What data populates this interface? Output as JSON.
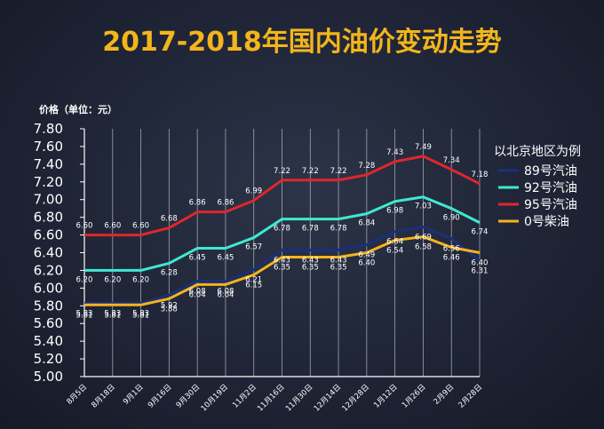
{
  "chart_data": {
    "type": "line",
    "title": "2017-2018年国内油价变动走势",
    "unit_label": "价格（单位：元）",
    "legend_title": "以北京地区为例",
    "legend_position": "right",
    "categories": [
      "8月5日",
      "8月18日",
      "9月1日",
      "9月16日",
      "9月30日",
      "10月19日",
      "11月2日",
      "11月16日",
      "11月30日",
      "12月14日",
      "12月28日",
      "1月12日",
      "1月26日",
      "2月9日",
      "2月28日"
    ],
    "ylim": [
      5.0,
      7.8
    ],
    "yticks": [
      "5.00",
      "5.20",
      "5.40",
      "5.60",
      "5.80",
      "6.00",
      "6.20",
      "6.40",
      "6.60",
      "6.80",
      "7.00",
      "7.20",
      "7.40",
      "7.60",
      "7.80"
    ],
    "grid": "vertical",
    "series": [
      {
        "name": "89号汽油",
        "color": "#1b2f7a",
        "values": [
          5.83,
          5.83,
          5.83,
          5.92,
          6.08,
          6.08,
          6.21,
          6.43,
          6.43,
          6.43,
          6.49,
          6.64,
          6.69,
          6.56,
          6.31
        ],
        "labels": [
          "5.83",
          "5.83",
          "5.83",
          "5.92",
          "6.08",
          "6.08",
          "6.21",
          "6.43",
          "6.43",
          "6.43",
          "6.49",
          "6.64",
          "6.69",
          "6.56",
          "6.31"
        ]
      },
      {
        "name": "92号汽油",
        "color": "#3fe8d2",
        "values": [
          6.2,
          6.2,
          6.2,
          6.28,
          6.45,
          6.45,
          6.57,
          6.78,
          6.78,
          6.78,
          6.84,
          6.98,
          7.03,
          6.9,
          6.74
        ],
        "labels": [
          "6.20",
          "6.20",
          "6.20",
          "6.28",
          "6.45",
          "6.45",
          "6.57",
          "6.78",
          "6.78",
          "6.78",
          "6.84",
          "6.98",
          "7.03",
          "6.90",
          "6.74"
        ]
      },
      {
        "name": "95号汽油",
        "color": "#e0262b",
        "values": [
          6.6,
          6.6,
          6.6,
          6.68,
          6.86,
          6.86,
          6.99,
          7.22,
          7.22,
          7.22,
          7.28,
          7.43,
          7.49,
          7.34,
          7.18
        ],
        "labels": [
          "6.60",
          "6.60",
          "6.60",
          "6.68",
          "6.86",
          "6.86",
          "6.99",
          "7.22",
          "7.22",
          "7.22",
          "7.28",
          "7.43",
          "7.49",
          "7.34",
          "7.18"
        ]
      },
      {
        "name": "0号柴油",
        "color": "#f5b41c",
        "values": [
          5.81,
          5.81,
          5.81,
          5.88,
          6.04,
          6.04,
          6.15,
          6.35,
          6.35,
          6.35,
          6.4,
          6.54,
          6.58,
          6.46,
          6.4
        ],
        "labels": [
          "5.81",
          "5.81",
          "5.81",
          "5.88",
          "6.04",
          "6.04",
          "6.15",
          "6.35",
          "6.35",
          "6.35",
          "6.40",
          "6.54",
          "6.58",
          "6.46",
          "6.40"
        ]
      }
    ]
  }
}
